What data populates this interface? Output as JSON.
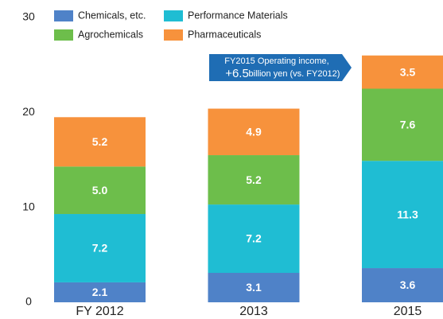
{
  "chart_data": {
    "type": "stacked_bar",
    "categories": [
      "FY 2012",
      "2013",
      "2015"
    ],
    "series": [
      {
        "name": "Chemicals, etc.",
        "color": "#4f82c8",
        "values": [
          2.1,
          3.1,
          3.6
        ],
        "value_labels": [
          "2.1",
          "3.1",
          "3.6"
        ]
      },
      {
        "name": "Performance Materials",
        "color": "#1fbdd3",
        "values": [
          7.2,
          7.2,
          11.3
        ],
        "value_labels": [
          "7.2",
          "7.2",
          "11.3"
        ]
      },
      {
        "name": "Agrochemicals",
        "color": "#6dbe4b",
        "values": [
          5.0,
          5.2,
          7.6
        ],
        "value_labels": [
          "5.0",
          "5.2",
          "7.6"
        ]
      },
      {
        "name": "Pharmaceuticals",
        "color": "#f7923c",
        "values": [
          5.2,
          4.9,
          3.5
        ],
        "value_labels": [
          "5.2",
          "4.9",
          "3.5"
        ]
      }
    ],
    "ylim": [
      0,
      30
    ],
    "yticks": [
      0,
      10,
      20,
      30
    ],
    "grid": false,
    "annotation": {
      "line1": "FY2015 Operating income,",
      "value": "+6.5",
      "line2": "billion yen (vs. FY2012)"
    }
  }
}
